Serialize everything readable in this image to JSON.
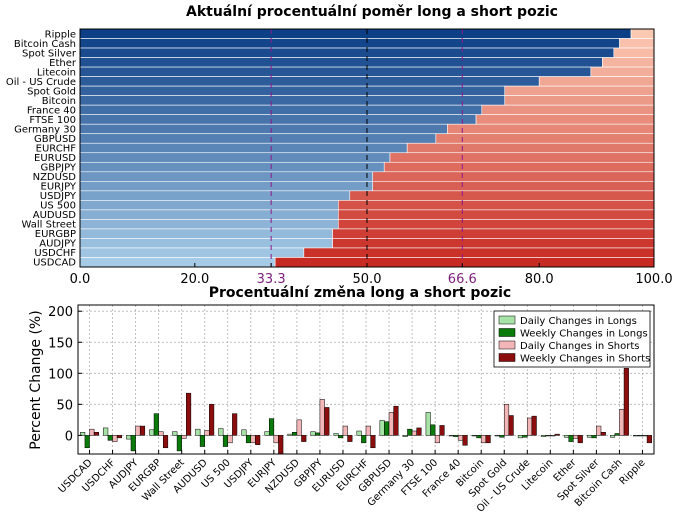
{
  "chart_data": [
    {
      "type": "bar",
      "orientation": "horizontal",
      "stacked": true,
      "title": "Aktuální procentuální poměr long a short pozic",
      "categories": [
        "Ripple",
        "Bitcoin Cash",
        "Spot Silver",
        "Ether",
        "Litecoin",
        "Oil - US Crude",
        "Spot Gold",
        "Bitcoin",
        "France 40",
        "FTSE 100",
        "Germany 30",
        "GBPUSD",
        "EURCHF",
        "EURUSD",
        "GBPJPY",
        "NZDUSD",
        "EURJPY",
        "USDJPY",
        "US 500",
        "AUDUSD",
        "Wall Street",
        "EURGBP",
        "AUDJPY",
        "USDCHF",
        "USDCAD"
      ],
      "long_values": [
        96,
        94,
        93,
        91,
        89,
        80,
        74,
        74,
        70,
        69,
        64,
        62,
        57,
        54,
        53,
        51,
        51,
        47,
        45,
        45,
        45,
        44,
        44,
        39,
        34
      ],
      "xlim": [
        0,
        100
      ],
      "xticks": [
        "0.0",
        "20.0",
        "33.3",
        "50.0",
        "66.6",
        "80.0",
        "100.0"
      ],
      "xtick_values": [
        0,
        20,
        33.3,
        50,
        66.6,
        80,
        100
      ],
      "reference_lines": [
        33.3,
        50,
        66.6
      ],
      "colors": {
        "long_dark": "#0d3f87",
        "long_light": "#a6cbe6",
        "short_light": "#fbc8b2",
        "short_dark": "#c72a23",
        "ref_line": "#8b1a8b"
      }
    },
    {
      "type": "bar",
      "title": "Procentuální změna long a short pozic",
      "ylabel": "Percent Change (%)",
      "ylim": [
        -30,
        210
      ],
      "yticks": [
        "0",
        "50",
        "100",
        "150",
        "200"
      ],
      "ytick_values": [
        0,
        50,
        100,
        150,
        200
      ],
      "categories": [
        "USDCAD",
        "USDCHF",
        "AUDJPY",
        "EURGBP",
        "Wall Street",
        "AUDUSD",
        "US 500",
        "USDJPY",
        "EURJPY",
        "NZDUSD",
        "GBPJPY",
        "EURUSD",
        "EURCHF",
        "GBPUSD",
        "Germany 30",
        "FTSE 100",
        "France 40",
        "Bitcoin",
        "Spot Gold",
        "Oil - US Crude",
        "Litecoin",
        "Ether",
        "Spot Silver",
        "Bitcoin Cash",
        "Ripple"
      ],
      "series": [
        {
          "name": "Daily Changes in Longs",
          "color": "#a7e3a7",
          "values": [
            5,
            12,
            -6,
            9,
            6,
            10,
            11,
            9,
            6,
            2,
            6,
            3,
            7,
            24,
            -2,
            37,
            -1,
            -1,
            -1,
            -4,
            -2,
            -3,
            -3,
            -3,
            -1
          ]
        },
        {
          "name": "Weekly Changes in Longs",
          "color": "#0a7a0a",
          "values": [
            -20,
            -8,
            -25,
            35,
            -25,
            -18,
            -18,
            -12,
            27,
            5,
            4,
            -4,
            -12,
            22,
            10,
            17,
            -2,
            -4,
            -3,
            -3,
            -1,
            -10,
            -4,
            3,
            -1
          ]
        },
        {
          "name": "Daily Changes in Shorts",
          "color": "#f3b6b8",
          "values": [
            10,
            -10,
            15,
            6,
            -5,
            8,
            -12,
            -12,
            -12,
            25,
            58,
            15,
            15,
            37,
            7,
            -12,
            -8,
            -12,
            50,
            28,
            -1,
            -5,
            15,
            42,
            -1
          ]
        },
        {
          "name": "Weekly Changes in Shorts",
          "color": "#8b0d0d",
          "values": [
            5,
            -4,
            15,
            -20,
            68,
            50,
            35,
            -15,
            -30,
            -10,
            45,
            -10,
            -20,
            47,
            12,
            16,
            -16,
            -12,
            32,
            31,
            2,
            -12,
            5,
            108,
            -12
          ]
        }
      ]
    }
  ]
}
